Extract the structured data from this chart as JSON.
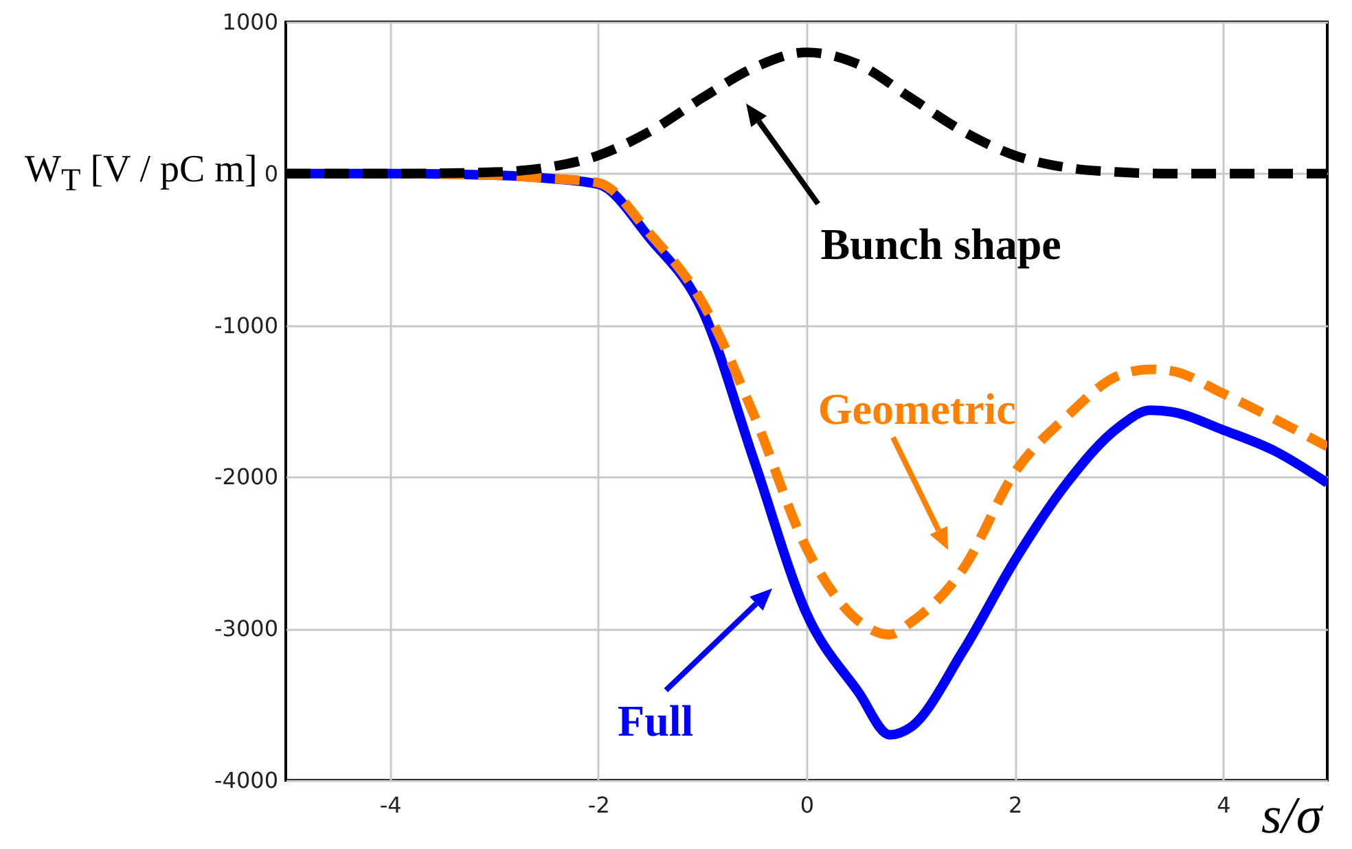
{
  "chart_data": {
    "type": "line",
    "xlabel": "s/σ",
    "ylabel": "W$_{T}$ [V / pC m]",
    "xlim": [
      -5,
      5
    ],
    "xticks": [
      -4,
      -2,
      0,
      2,
      4
    ],
    "ylim": [
      -4000,
      1000
    ],
    "yticks": [
      -4000,
      -3000,
      -2000,
      -1000,
      0,
      1000
    ],
    "grid": true,
    "legend": "center",
    "series": [
      {
        "name": "Full",
        "color": "#0000ff",
        "line_style": "solid",
        "x": [
          -5,
          -4,
          -3,
          -2.5,
          -2,
          -1.5,
          -1,
          -0.5,
          0,
          0.5,
          0.8,
          1,
          1.5,
          2,
          2.5,
          3,
          3.3,
          3.5,
          4,
          4.5,
          5
        ],
        "values": [
          0,
          0,
          -10,
          -30,
          -70,
          -430,
          -900,
          -1900,
          -2900,
          -3420,
          -3700,
          -3650,
          -3150,
          -2550,
          -2040,
          -1670,
          -1560,
          -1570,
          -1690,
          -1830,
          -2040
        ]
      },
      {
        "name": "Geometric",
        "color": "#ff8000",
        "line_style": "dashed",
        "x": [
          -5,
          -4,
          -3,
          -2.5,
          -2,
          -1.5,
          -1,
          -0.5,
          0,
          0.5,
          0.8,
          1,
          1.5,
          2,
          2.5,
          3,
          3.3,
          3.5,
          4,
          4.5,
          5
        ],
        "values": [
          0,
          0,
          -10,
          -30,
          -60,
          -400,
          -850,
          -1600,
          -2470,
          -2950,
          -3040,
          -2960,
          -2610,
          -1970,
          -1600,
          -1330,
          -1290,
          -1300,
          -1450,
          -1620,
          -1800
        ]
      },
      {
        "name": "Bunch shape",
        "color": "#000000",
        "line_style": "dashed",
        "x": [
          -5,
          -4,
          -3,
          -2.5,
          -2,
          -1.5,
          -1,
          -0.5,
          0,
          0.5,
          1,
          1.5,
          2,
          2.5,
          3,
          3.5,
          4,
          4.5,
          5
        ],
        "values": [
          0,
          0,
          10,
          40,
          120,
          280,
          500,
          700,
          800,
          720,
          500,
          280,
          120,
          40,
          10,
          0,
          0,
          0,
          0
        ]
      }
    ]
  }
}
